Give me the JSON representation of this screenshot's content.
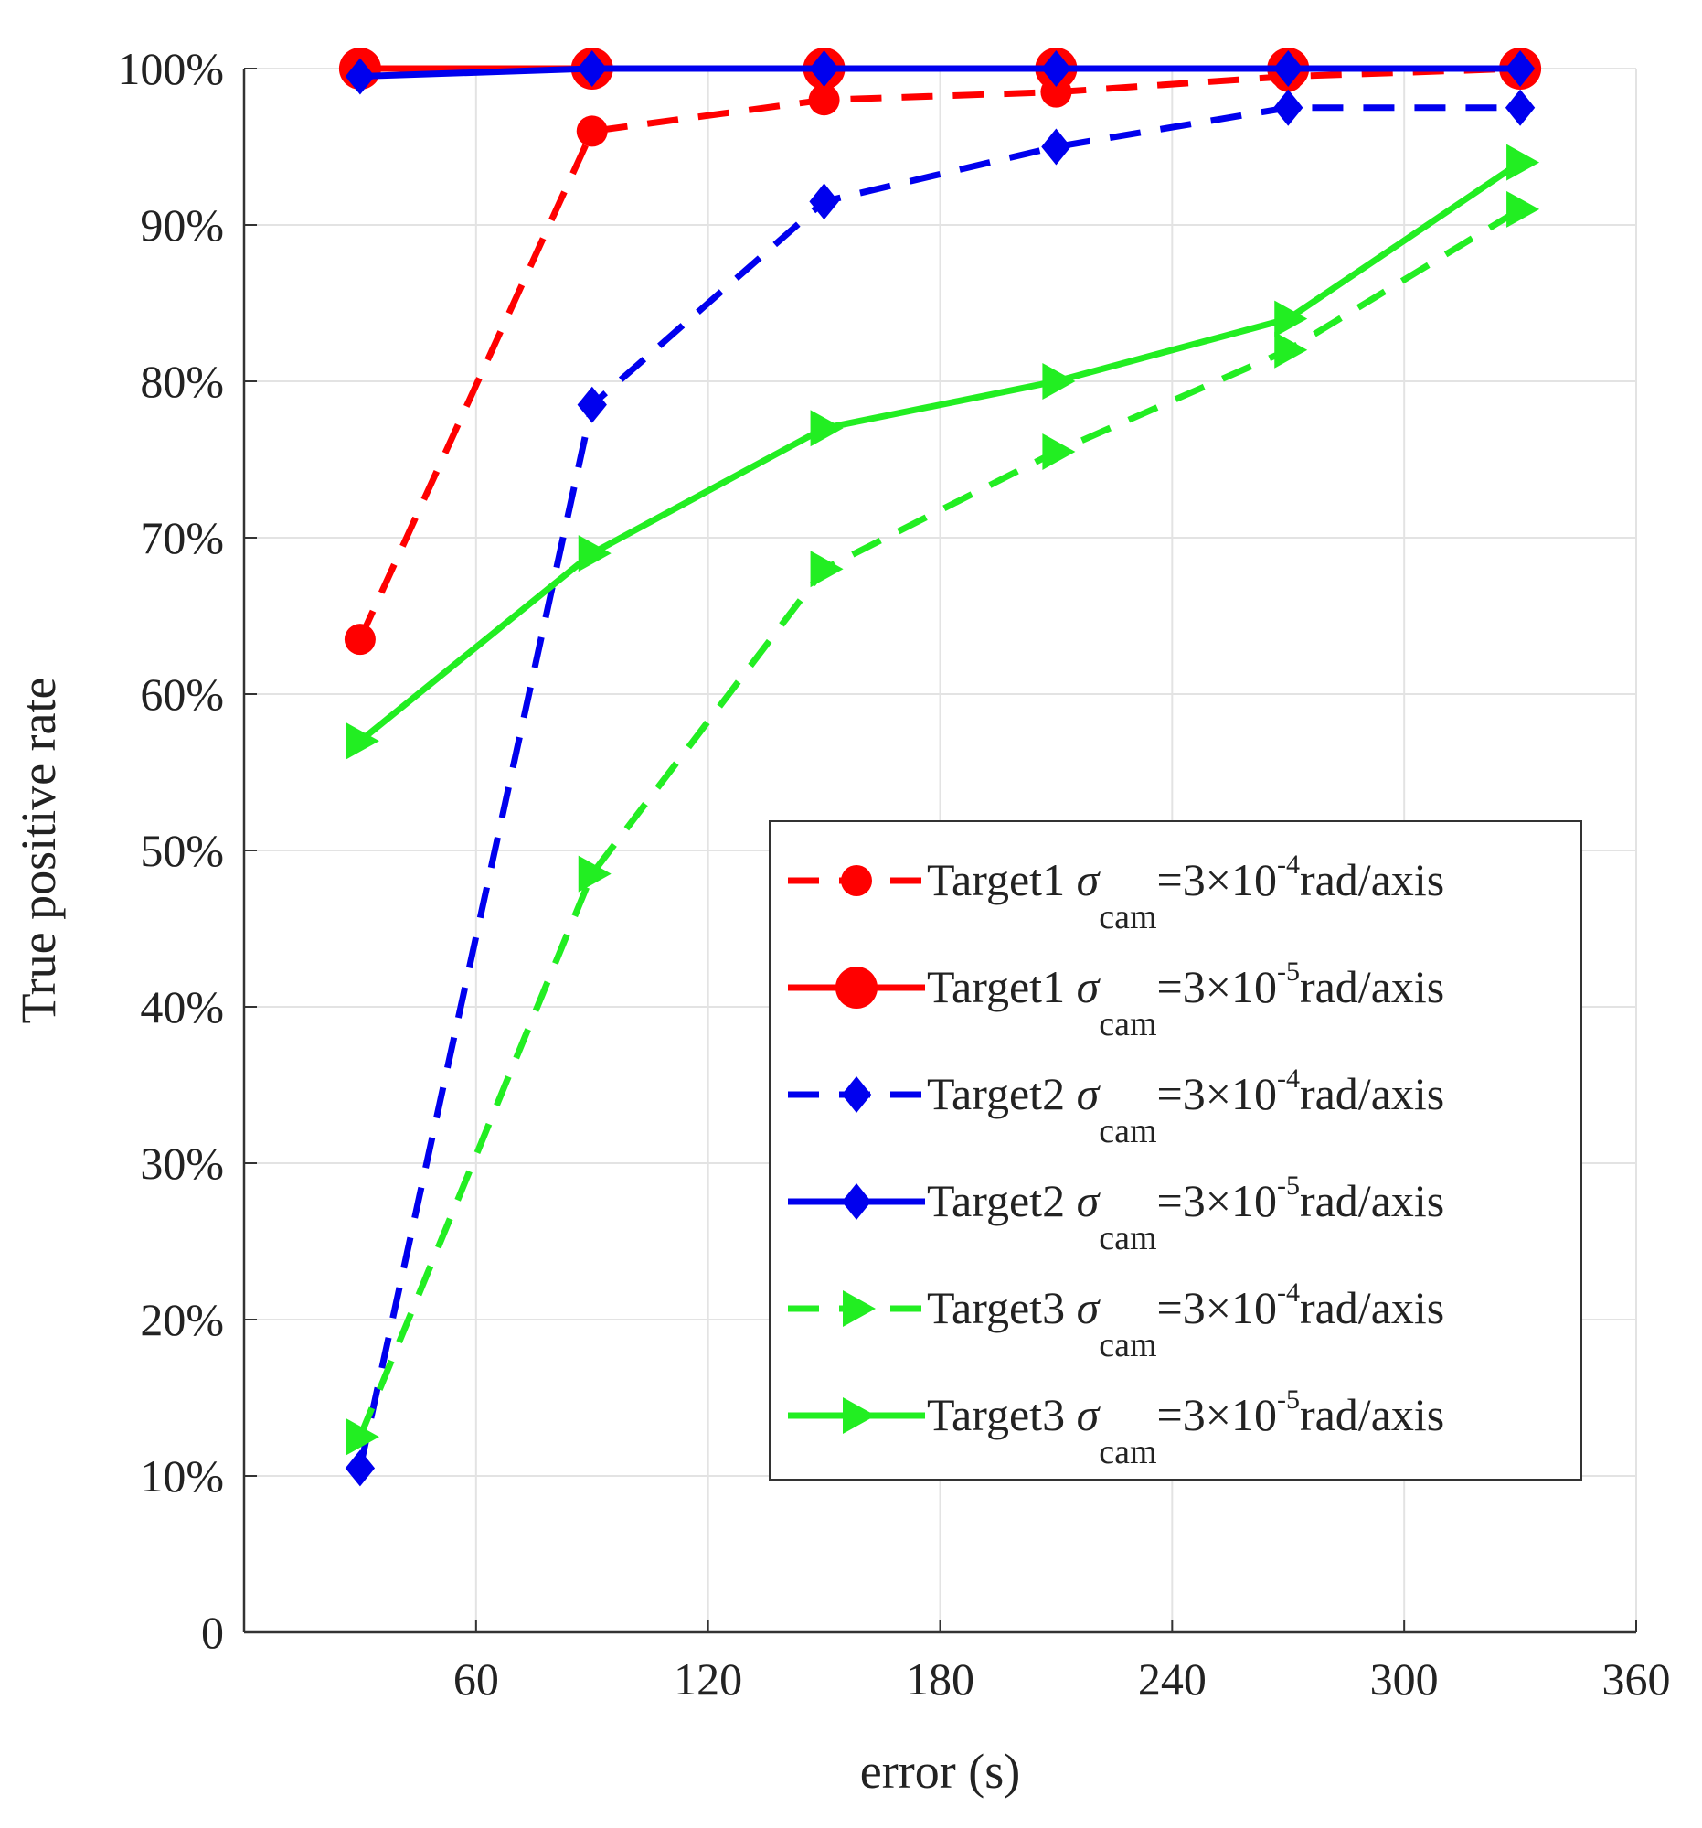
{
  "chart_data": {
    "type": "line",
    "xlabel": "error (s)",
    "ylabel": "True positive rate",
    "xlim": [
      0,
      360
    ],
    "ylim": [
      0,
      100
    ],
    "x_ticks": [
      60,
      120,
      180,
      240,
      300,
      360
    ],
    "x_tick_labels": [
      "60",
      "120",
      "180",
      "240",
      "300",
      "360"
    ],
    "y_ticks": [
      0,
      10,
      20,
      30,
      40,
      50,
      60,
      70,
      80,
      90,
      100
    ],
    "y_tick_labels": [
      "0",
      "10%",
      "20%",
      "30%",
      "40%",
      "50%",
      "60%",
      "70%",
      "80%",
      "90%",
      "100%"
    ],
    "grid": true,
    "legend_position": "bottom-right",
    "x": [
      30,
      90,
      150,
      210,
      270,
      330
    ],
    "series": [
      {
        "name": "Target1 σcam=3×10-4rad/axis",
        "target": "Target1",
        "sigma": "σ",
        "sub": "cam",
        "eq": "=3×10",
        "exp": "-4",
        "unit": "rad/axis",
        "color": "#ff0000",
        "dashed": true,
        "marker": "circle",
        "values": [
          63.5,
          96,
          98,
          98.5,
          99.5,
          100
        ]
      },
      {
        "name": "Target1 σcam=3×10-5rad/axis",
        "target": "Target1",
        "sigma": "σ",
        "sub": "cam",
        "eq": "=3×10",
        "exp": "-5",
        "unit": "rad/axis",
        "color": "#ff0000",
        "dashed": false,
        "marker": "circle-large",
        "values": [
          100,
          100,
          100,
          100,
          100,
          100
        ]
      },
      {
        "name": "Target2 σcam=3×10-4rad/axis",
        "target": "Target2",
        "sigma": "σ",
        "sub": "cam",
        "eq": "=3×10",
        "exp": "-4",
        "unit": "rad/axis",
        "color": "#0000ee",
        "dashed": true,
        "marker": "diamond",
        "values": [
          10.5,
          78.5,
          91.5,
          95,
          97.5,
          97.5
        ]
      },
      {
        "name": "Target2 σcam=3×10-5rad/axis",
        "target": "Target2",
        "sigma": "σ",
        "sub": "cam",
        "eq": "=3×10",
        "exp": "-5",
        "unit": "rad/axis",
        "color": "#0000ee",
        "dashed": false,
        "marker": "diamond",
        "values": [
          99.5,
          100,
          100,
          100,
          100,
          100
        ]
      },
      {
        "name": "Target3 σcam=3×10-4rad/axis",
        "target": "Target3",
        "sigma": "σ",
        "sub": "cam",
        "eq": "=3×10",
        "exp": "-4",
        "unit": "rad/axis",
        "color": "#22ee22",
        "dashed": true,
        "marker": "triangle-right",
        "values": [
          12.5,
          48.5,
          68,
          75.5,
          82,
          91
        ]
      },
      {
        "name": "Target3 σcam=3×10-5rad/axis",
        "target": "Target3",
        "sigma": "σ",
        "sub": "cam",
        "eq": "=3×10",
        "exp": "-5",
        "unit": "rad/axis",
        "color": "#22ee22",
        "dashed": false,
        "marker": "triangle-right",
        "values": [
          57,
          69,
          77,
          80,
          84,
          94
        ]
      }
    ]
  }
}
